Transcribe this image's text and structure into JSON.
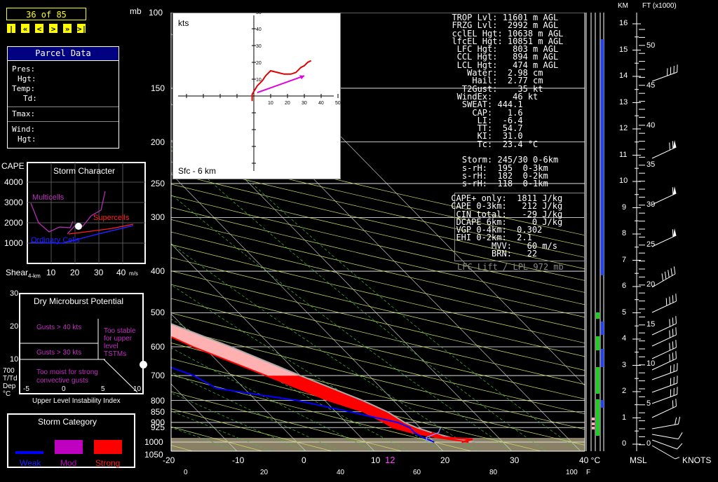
{
  "nav": {
    "counter": "36 of 85",
    "buttons": [
      "|<",
      "«",
      "<",
      ">",
      "»",
      ">|"
    ]
  },
  "parcel": {
    "title": "Parcel Data",
    "labels": [
      "Pres:",
      "Hgt:",
      "Temp:",
      "Td:",
      "Tmax:",
      "Wind:",
      "Hgt:"
    ]
  },
  "storm_character": {
    "title": "Storm Character",
    "y_title": "CAPE",
    "y_ticks": [
      "4000",
      "3000",
      "2000",
      "1000"
    ],
    "x_title": "Shear",
    "x_sub": "4-km",
    "x_ticks": [
      "10",
      "20",
      "30",
      "40"
    ],
    "x_unit": "m/s",
    "regions": [
      "Multicells",
      "Supercells",
      "Ordinary Cells"
    ],
    "colors": {
      "multicells": "#c030c0",
      "supercells": "#ff2020",
      "ordinary": "#2020ff"
    }
  },
  "microburst": {
    "title": "Dry Microburst Potential",
    "y_ticks": [
      "30",
      "20",
      "10"
    ],
    "y_title": [
      "700",
      "T/Td",
      "Dep",
      "°C"
    ],
    "x_ticks": [
      "-5",
      "0",
      "5",
      "10"
    ],
    "x_title": "Upper Level Instability Index",
    "regions": [
      "Gusts > 40 kts",
      "Gusts > 30 kts",
      "Too moist for strong convective gusts",
      "Too stable for upper level TSTMs"
    ]
  },
  "storm_category": {
    "title": "Storm Category",
    "items": [
      {
        "label": "Weak",
        "color": "#0000ff"
      },
      {
        "label": "Mod",
        "color": "#c000c0"
      },
      {
        "label": "Strong",
        "color": "#ff0000"
      }
    ]
  },
  "hodograph": {
    "unit": "kts",
    "label": "Sfc - 6 km",
    "ticks": [
      "10",
      "20",
      "30",
      "40",
      "50"
    ]
  },
  "indices": {
    "lines": [
      "  TROP Lvl: 11601 m AGL",
      "  FRZG Lvl:  2992 m AGL",
      "  cclEL Hgt: 10638 m AGL",
      "  lfcEL Hgt: 10851 m AGL",
      "   LFC Hgt:   803 m AGL",
      "   CCL Hgt:   894 m AGL",
      "   LCL Hgt:   474 m AGL",
      "     Water:  2.98 cm",
      "      Hail:  2.77 cm",
      "    T2Gust:    35 kt",
      "   WindEx:    46 kt",
      "    SWEAT: 444.1",
      "      CAP:   1.6",
      "       LI:  -6.4",
      "       TT:  54.7",
      "       KI:  31.0",
      "       Tc:  23.4 °C",
      "",
      "    Storm: 245/30 0-6km",
      "    s-rH:  195  0-3km",
      "    s-rH:  182  0-2km",
      "    s-rH:  118  0-1km"
    ],
    "lines2": [
      " CAPE+ only:  1811 J/kg",
      " CAPE 0-3km:   212 J/kg",
      "  CIN total:   -29 J/kg",
      "  DCAPE 6km:     0 J/kg",
      "  VGP 0-4km:  0.302",
      "  EHI 0-2km:  2.1",
      "         MVV:   60 m/s",
      "         BRN:   22"
    ],
    "lift": "LFC Lift / LPL 972 mb"
  },
  "chart_data": {
    "type": "line",
    "title": "",
    "pressure_unit": "mb",
    "pressure_levels": [
      100,
      150,
      200,
      250,
      300,
      400,
      500,
      600,
      700,
      800,
      850,
      900,
      925,
      1000,
      1050
    ],
    "temp_c_ticks": [
      "-20",
      "-10",
      "0",
      "10",
      "20",
      "30",
      "40 °C"
    ],
    "temp_f_ticks": [
      "0",
      "20",
      "40",
      "60",
      "80",
      "100",
      "F"
    ],
    "highlight_value": "12",
    "series": [
      {
        "name": "Temperature",
        "color": "#ff0000",
        "points": [
          [
            1000,
            25
          ],
          [
            975,
            21
          ],
          [
            950,
            18
          ],
          [
            925,
            16
          ],
          [
            900,
            15.5
          ],
          [
            850,
            14
          ],
          [
            800,
            10.5
          ],
          [
            700,
            5
          ],
          [
            600,
            -1.5
          ],
          [
            500,
            -7.5
          ],
          [
            400,
            -17
          ],
          [
            300,
            -29
          ],
          [
            250,
            -36
          ]
        ]
      },
      {
        "name": "Dewpoint",
        "color": "#0000ff",
        "points": [
          [
            1000,
            20
          ],
          [
            975,
            19
          ],
          [
            950,
            18.5
          ],
          [
            925,
            18.5
          ],
          [
            900,
            17.5
          ],
          [
            850,
            12
          ],
          [
            800,
            6
          ],
          [
            750,
            -4
          ],
          [
            700,
            -5.5
          ],
          [
            600,
            -13
          ],
          [
            500,
            -19
          ],
          [
            450,
            -25
          ],
          [
            400,
            -36
          ],
          [
            350,
            -43
          ],
          [
            300,
            -45
          ],
          [
            250,
            -41
          ]
        ]
      },
      {
        "name": "Parcel",
        "color": "#aaaaaa",
        "points": [
          [
            1000,
            26
          ],
          [
            975,
            23
          ],
          [
            950,
            21
          ],
          [
            925,
            19.5
          ],
          [
            900,
            18.5
          ],
          [
            850,
            17.5
          ],
          [
            800,
            15.5
          ],
          [
            700,
            10
          ],
          [
            600,
            4
          ],
          [
            500,
            -4
          ],
          [
            400,
            -13
          ],
          [
            300,
            -23
          ],
          [
            250,
            -31
          ]
        ]
      }
    ],
    "height_km_ticks": [
      "16",
      "15",
      "14",
      "13",
      "12",
      "11",
      "10",
      "9",
      "8",
      "7",
      "6",
      "5",
      "4",
      "3",
      "2",
      "1",
      "0"
    ],
    "height_ft_ticks": [
      "50",
      "45",
      "40",
      "35",
      "30",
      "25",
      "20",
      "15",
      "10",
      "5",
      "0"
    ],
    "height_km_label": "KM",
    "height_ft_label": "FT (x1000)",
    "msl_label": "MSL",
    "knots_label": "KNOTS",
    "hodograph_points": [
      [
        -1,
        -3
      ],
      [
        -1,
        1
      ],
      [
        2,
        6
      ],
      [
        5,
        9
      ],
      [
        7,
        12
      ],
      [
        8,
        13
      ],
      [
        10,
        15
      ],
      [
        14,
        14
      ],
      [
        18,
        13
      ],
      [
        22,
        13
      ],
      [
        25,
        14
      ],
      [
        28,
        17
      ],
      [
        30,
        18
      ],
      [
        32,
        20
      ],
      [
        34,
        21
      ]
    ],
    "storm_motion": [
      [
        2,
        2
      ],
      [
        30,
        12
      ]
    ]
  }
}
